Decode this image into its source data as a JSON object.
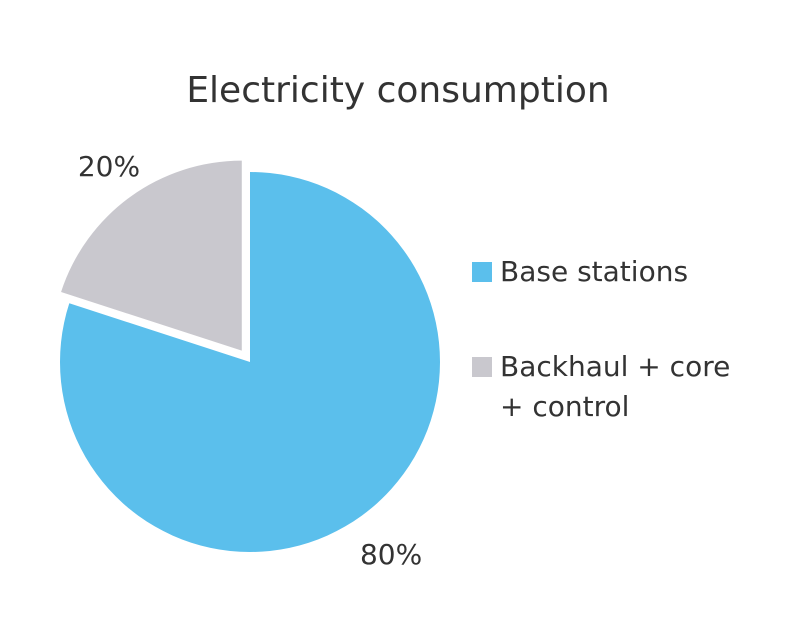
{
  "chart_data": {
    "type": "pie",
    "title": "Electricity consumption",
    "categories": [
      "Base stations",
      "Backhaul + core + control"
    ],
    "values": [
      80,
      20
    ],
    "value_labels": [
      "80%",
      "20%"
    ],
    "colors": [
      "#5bbfec",
      "#c9c8ce"
    ]
  }
}
